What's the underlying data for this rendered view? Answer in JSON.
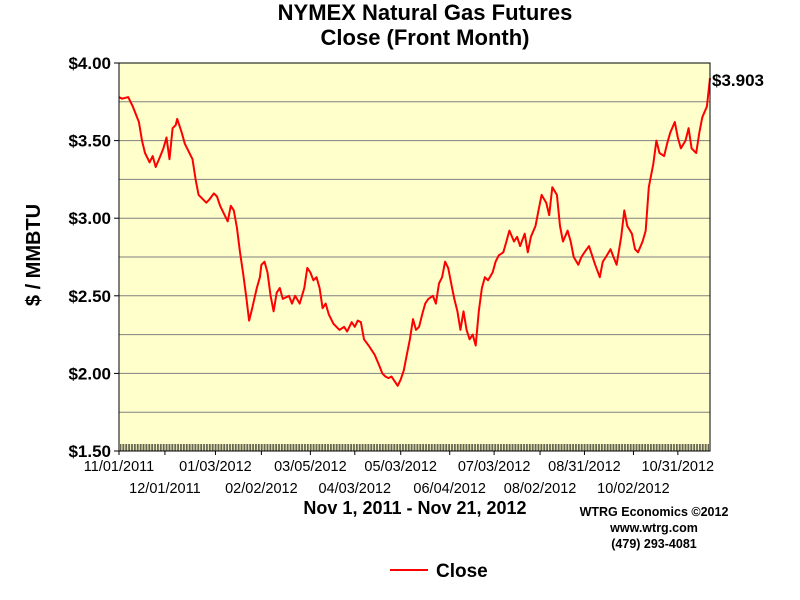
{
  "colors": {
    "plot_background": "#ffffcc",
    "series": "#ff0000",
    "grid": "#808080"
  },
  "chart_data": {
    "type": "line",
    "title": [
      "NYMEX Natural Gas Futures",
      "Close (Front Month)"
    ],
    "xlabel": "Nov 1, 2011 - Nov 21, 2012",
    "ylabel": "$ / MMBTU",
    "ylim": [
      1.5,
      4.0
    ],
    "ytick_labels": [
      "$1.50",
      "$2.00",
      "$2.50",
      "$3.00",
      "$3.50",
      "$4.00"
    ],
    "ytick_values": [
      1.5,
      2.0,
      2.5,
      3.0,
      3.5,
      4.0
    ],
    "xlim": [
      "2011-11-01",
      "2012-11-21"
    ],
    "xtick_labels": [
      "11/01/2011",
      "12/01/2011",
      "01/03/2012",
      "02/02/2012",
      "03/05/2012",
      "04/03/2012",
      "05/03/2012",
      "06/04/2012",
      "07/03/2012",
      "08/02/2012",
      "08/31/2012",
      "10/02/2012",
      "10/31/2012"
    ],
    "xtick_dates": [
      "2011-11-01",
      "2011-12-01",
      "2012-01-03",
      "2012-02-02",
      "2012-03-05",
      "2012-04-03",
      "2012-05-03",
      "2012-06-04",
      "2012-07-03",
      "2012-08-02",
      "2012-08-31",
      "2012-10-02",
      "2012-10-31"
    ],
    "grid": "horizontal",
    "legend_position": "bottom-center",
    "last_value_label": "$3.903",
    "series": [
      {
        "name": "Close",
        "color": "#ff0000",
        "points": [
          [
            "2011-11-01",
            3.78
          ],
          [
            "2011-11-03",
            3.77
          ],
          [
            "2011-11-07",
            3.78
          ],
          [
            "2011-11-10",
            3.72
          ],
          [
            "2011-11-14",
            3.62
          ],
          [
            "2011-11-16",
            3.5
          ],
          [
            "2011-11-18",
            3.42
          ],
          [
            "2011-11-21",
            3.36
          ],
          [
            "2011-11-23",
            3.4
          ],
          [
            "2011-11-25",
            3.33
          ],
          [
            "2011-11-28",
            3.4
          ],
          [
            "2011-11-30",
            3.45
          ],
          [
            "2011-12-02",
            3.52
          ],
          [
            "2011-12-04",
            3.38
          ],
          [
            "2011-12-06",
            3.58
          ],
          [
            "2011-12-08",
            3.6
          ],
          [
            "2011-12-09",
            3.64
          ],
          [
            "2011-12-12",
            3.55
          ],
          [
            "2011-12-14",
            3.48
          ],
          [
            "2011-12-16",
            3.44
          ],
          [
            "2011-12-19",
            3.38
          ],
          [
            "2011-12-21",
            3.25
          ],
          [
            "2011-12-23",
            3.15
          ],
          [
            "2011-12-26",
            3.12
          ],
          [
            "2011-12-28",
            3.1
          ],
          [
            "2011-12-30",
            3.12
          ],
          [
            "2012-01-02",
            3.16
          ],
          [
            "2012-01-04",
            3.14
          ],
          [
            "2012-01-06",
            3.08
          ],
          [
            "2012-01-09",
            3.02
          ],
          [
            "2012-01-11",
            2.98
          ],
          [
            "2012-01-13",
            3.08
          ],
          [
            "2012-01-15",
            3.05
          ],
          [
            "2012-01-17",
            2.94
          ],
          [
            "2012-01-19",
            2.78
          ],
          [
            "2012-01-21",
            2.65
          ],
          [
            "2012-01-23",
            2.5
          ],
          [
            "2012-01-25",
            2.34
          ],
          [
            "2012-01-27",
            2.42
          ],
          [
            "2012-01-30",
            2.55
          ],
          [
            "2012-02-01",
            2.62
          ],
          [
            "2012-02-02",
            2.7
          ],
          [
            "2012-02-04",
            2.72
          ],
          [
            "2012-02-06",
            2.65
          ],
          [
            "2012-02-08",
            2.5
          ],
          [
            "2012-02-10",
            2.4
          ],
          [
            "2012-02-12",
            2.52
          ],
          [
            "2012-02-14",
            2.55
          ],
          [
            "2012-02-16",
            2.48
          ],
          [
            "2012-02-20",
            2.5
          ],
          [
            "2012-02-22",
            2.45
          ],
          [
            "2012-02-24",
            2.5
          ],
          [
            "2012-02-27",
            2.45
          ],
          [
            "2012-03-01",
            2.55
          ],
          [
            "2012-03-03",
            2.68
          ],
          [
            "2012-03-05",
            2.65
          ],
          [
            "2012-03-07",
            2.6
          ],
          [
            "2012-03-09",
            2.62
          ],
          [
            "2012-03-11",
            2.55
          ],
          [
            "2012-03-13",
            2.42
          ],
          [
            "2012-03-15",
            2.45
          ],
          [
            "2012-03-17",
            2.38
          ],
          [
            "2012-03-20",
            2.32
          ],
          [
            "2012-03-22",
            2.3
          ],
          [
            "2012-03-24",
            2.28
          ],
          [
            "2012-03-27",
            2.3
          ],
          [
            "2012-03-29",
            2.27
          ],
          [
            "2012-04-01",
            2.33
          ],
          [
            "2012-04-03",
            2.3
          ],
          [
            "2012-04-05",
            2.34
          ],
          [
            "2012-04-07",
            2.33
          ],
          [
            "2012-04-09",
            2.22
          ],
          [
            "2012-04-12",
            2.18
          ],
          [
            "2012-04-14",
            2.15
          ],
          [
            "2012-04-16",
            2.12
          ],
          [
            "2012-04-19",
            2.05
          ],
          [
            "2012-04-21",
            2.0
          ],
          [
            "2012-04-23",
            1.98
          ],
          [
            "2012-04-25",
            1.97
          ],
          [
            "2012-04-27",
            1.98
          ],
          [
            "2012-04-29",
            1.95
          ],
          [
            "2012-05-01",
            1.92
          ],
          [
            "2012-05-03",
            1.96
          ],
          [
            "2012-05-05",
            2.02
          ],
          [
            "2012-05-07",
            2.12
          ],
          [
            "2012-05-09",
            2.22
          ],
          [
            "2012-05-11",
            2.35
          ],
          [
            "2012-05-13",
            2.28
          ],
          [
            "2012-05-15",
            2.3
          ],
          [
            "2012-05-17",
            2.38
          ],
          [
            "2012-05-19",
            2.45
          ],
          [
            "2012-05-21",
            2.48
          ],
          [
            "2012-05-24",
            2.5
          ],
          [
            "2012-05-26",
            2.45
          ],
          [
            "2012-05-28",
            2.58
          ],
          [
            "2012-05-30",
            2.62
          ],
          [
            "2012-06-01",
            2.72
          ],
          [
            "2012-06-03",
            2.68
          ],
          [
            "2012-06-05",
            2.58
          ],
          [
            "2012-06-07",
            2.48
          ],
          [
            "2012-06-09",
            2.4
          ],
          [
            "2012-06-11",
            2.28
          ],
          [
            "2012-06-13",
            2.4
          ],
          [
            "2012-06-15",
            2.28
          ],
          [
            "2012-06-17",
            2.22
          ],
          [
            "2012-06-19",
            2.25
          ],
          [
            "2012-06-21",
            2.18
          ],
          [
            "2012-06-23",
            2.4
          ],
          [
            "2012-06-25",
            2.55
          ],
          [
            "2012-06-27",
            2.62
          ],
          [
            "2012-06-29",
            2.6
          ],
          [
            "2012-07-02",
            2.65
          ],
          [
            "2012-07-04",
            2.72
          ],
          [
            "2012-07-06",
            2.76
          ],
          [
            "2012-07-09",
            2.78
          ],
          [
            "2012-07-11",
            2.85
          ],
          [
            "2012-07-13",
            2.92
          ],
          [
            "2012-07-16",
            2.85
          ],
          [
            "2012-07-18",
            2.88
          ],
          [
            "2012-07-20",
            2.82
          ],
          [
            "2012-07-23",
            2.9
          ],
          [
            "2012-07-25",
            2.78
          ],
          [
            "2012-07-27",
            2.88
          ],
          [
            "2012-07-30",
            2.95
          ],
          [
            "2012-08-01",
            3.05
          ],
          [
            "2012-08-03",
            3.15
          ],
          [
            "2012-08-06",
            3.1
          ],
          [
            "2012-08-08",
            3.02
          ],
          [
            "2012-08-10",
            3.2
          ],
          [
            "2012-08-13",
            3.15
          ],
          [
            "2012-08-15",
            2.95
          ],
          [
            "2012-08-17",
            2.85
          ],
          [
            "2012-08-20",
            2.92
          ],
          [
            "2012-08-22",
            2.85
          ],
          [
            "2012-08-24",
            2.75
          ],
          [
            "2012-08-27",
            2.7
          ],
          [
            "2012-08-29",
            2.75
          ],
          [
            "2012-08-31",
            2.78
          ],
          [
            "2012-09-03",
            2.82
          ],
          [
            "2012-09-05",
            2.76
          ],
          [
            "2012-09-07",
            2.7
          ],
          [
            "2012-09-10",
            2.62
          ],
          [
            "2012-09-12",
            2.72
          ],
          [
            "2012-09-14",
            2.75
          ],
          [
            "2012-09-17",
            2.8
          ],
          [
            "2012-09-19",
            2.75
          ],
          [
            "2012-09-21",
            2.7
          ],
          [
            "2012-09-24",
            2.88
          ],
          [
            "2012-09-26",
            3.05
          ],
          [
            "2012-09-28",
            2.95
          ],
          [
            "2012-10-01",
            2.9
          ],
          [
            "2012-10-03",
            2.8
          ],
          [
            "2012-10-05",
            2.78
          ],
          [
            "2012-10-08",
            2.85
          ],
          [
            "2012-10-10",
            2.92
          ],
          [
            "2012-10-12",
            3.2
          ],
          [
            "2012-10-15",
            3.35
          ],
          [
            "2012-10-17",
            3.5
          ],
          [
            "2012-10-19",
            3.42
          ],
          [
            "2012-10-22",
            3.4
          ],
          [
            "2012-10-24",
            3.48
          ],
          [
            "2012-10-26",
            3.55
          ],
          [
            "2012-10-29",
            3.62
          ],
          [
            "2012-10-31",
            3.52
          ],
          [
            "2012-11-02",
            3.45
          ],
          [
            "2012-11-05",
            3.5
          ],
          [
            "2012-11-07",
            3.58
          ],
          [
            "2012-11-09",
            3.45
          ],
          [
            "2012-11-12",
            3.42
          ],
          [
            "2012-11-14",
            3.55
          ],
          [
            "2012-11-16",
            3.65
          ],
          [
            "2012-11-19",
            3.72
          ],
          [
            "2012-11-21",
            3.903
          ]
        ]
      }
    ]
  },
  "credits": [
    "WTRG Economics  ©2012",
    "www.wtrg.com",
    "(479) 293-4081"
  ]
}
